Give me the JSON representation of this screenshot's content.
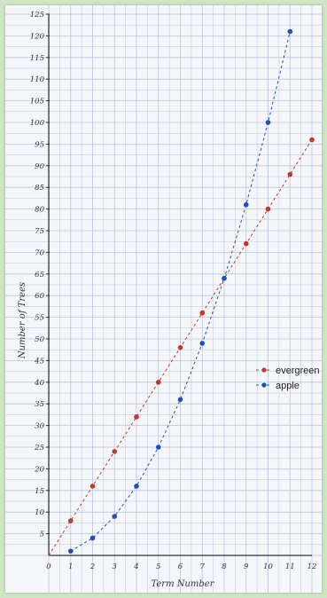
{
  "chart_data": {
    "type": "line",
    "xlabel": "Term Number",
    "ylabel": "Number of Trees",
    "xlim": [
      0,
      12
    ],
    "ylim": [
      0,
      125
    ],
    "xticks": [
      "0",
      "1",
      "2",
      "3",
      "4",
      "5",
      "6",
      "7",
      "8",
      "9",
      "10",
      "11",
      "12"
    ],
    "yticks": [
      "5",
      "10",
      "15",
      "20",
      "25",
      "30",
      "35",
      "40",
      "45",
      "50",
      "55",
      "60",
      "65",
      "70",
      "75",
      "80",
      "85",
      "90",
      "95",
      "100",
      "105",
      "110",
      "115",
      "120",
      "125"
    ],
    "grid": true,
    "legend_position": "right",
    "series": [
      {
        "name": "evergreen",
        "color": "#c0392b",
        "x": [
          0,
          1,
          2,
          3,
          4,
          5,
          6,
          7,
          8,
          9,
          10,
          11,
          12
        ],
        "y": [
          0,
          8,
          16,
          24,
          32,
          40,
          48,
          56,
          64,
          72,
          80,
          88,
          96
        ]
      },
      {
        "name": "apple",
        "color": "#1f4fbf",
        "x": [
          1,
          2,
          3,
          4,
          5,
          6,
          7,
          8,
          9,
          10,
          11
        ],
        "y": [
          1,
          4,
          9,
          16,
          25,
          36,
          49,
          64,
          81,
          100,
          121
        ]
      }
    ]
  }
}
